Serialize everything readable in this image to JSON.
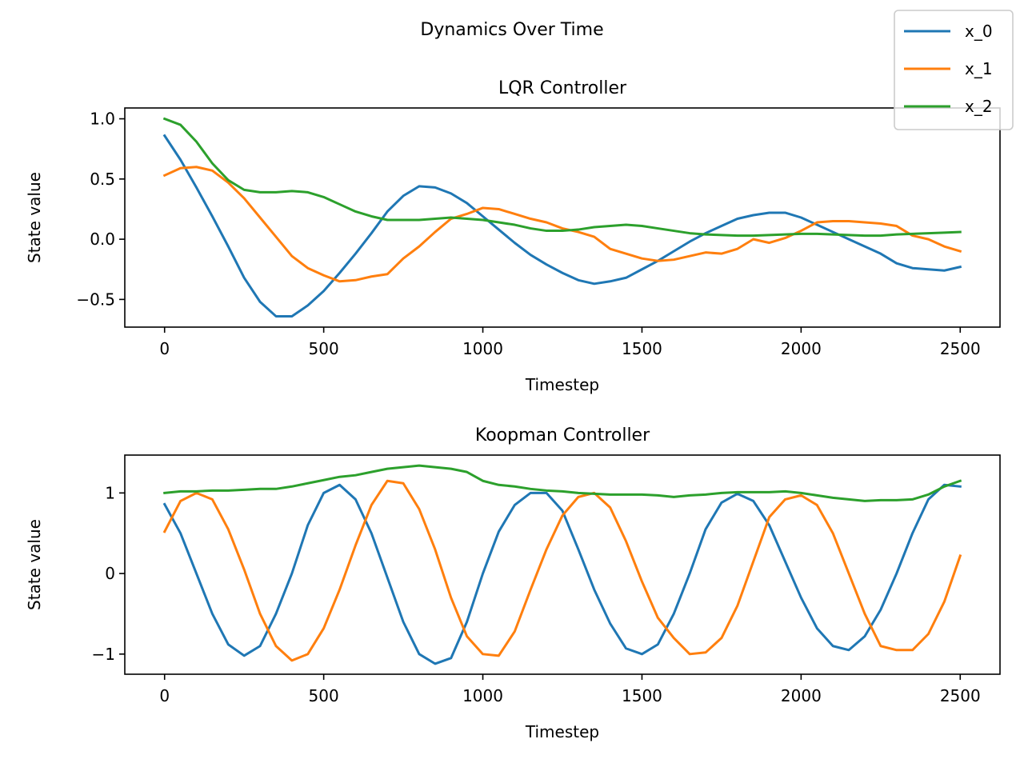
{
  "figure": {
    "suptitle": "Dynamics Over Time",
    "legend": {
      "placement": "top-right",
      "entries": [
        {
          "name": "x_0",
          "color": "#1f77b4"
        },
        {
          "name": "x_1",
          "color": "#ff7f0e"
        },
        {
          "name": "x_2",
          "color": "#2ca02c"
        }
      ]
    }
  },
  "chart_data": [
    {
      "type": "line",
      "title": "LQR Controller",
      "xlabel": "Timestep",
      "ylabel": "State value",
      "xlim": [
        -125,
        2625
      ],
      "ylim": [
        -0.73,
        1.09
      ],
      "xticks": [
        0,
        500,
        1000,
        1500,
        2000,
        2500
      ],
      "xtick_labels": [
        "0",
        "500",
        "1000",
        "1500",
        "2000",
        "2500"
      ],
      "yticks": [
        -0.5,
        0.0,
        0.5,
        1.0
      ],
      "ytick_labels": [
        "−0.5",
        "0.0",
        "0.5",
        "1.0"
      ],
      "grid": false,
      "series": [
        {
          "name": "x_0",
          "color": "#1f77b4",
          "x": [
            0,
            50,
            100,
            150,
            200,
            250,
            300,
            350,
            400,
            450,
            500,
            550,
            600,
            650,
            700,
            750,
            800,
            850,
            900,
            950,
            1000,
            1050,
            1100,
            1150,
            1200,
            1250,
            1300,
            1350,
            1400,
            1450,
            1500,
            1550,
            1600,
            1650,
            1700,
            1750,
            1800,
            1850,
            1900,
            1950,
            2000,
            2050,
            2100,
            2150,
            2200,
            2250,
            2300,
            2350,
            2400,
            2450,
            2500
          ],
          "values": [
            0.86,
            0.66,
            0.43,
            0.19,
            -0.06,
            -0.32,
            -0.52,
            -0.64,
            -0.64,
            -0.55,
            -0.43,
            -0.28,
            -0.12,
            0.05,
            0.23,
            0.36,
            0.44,
            0.43,
            0.38,
            0.3,
            0.19,
            0.08,
            -0.03,
            -0.13,
            -0.21,
            -0.28,
            -0.34,
            -0.37,
            -0.35,
            -0.32,
            -0.25,
            -0.18,
            -0.1,
            -0.02,
            0.05,
            0.11,
            0.17,
            0.2,
            0.22,
            0.22,
            0.18,
            0.12,
            0.06,
            0.0,
            -0.06,
            -0.12,
            -0.2,
            -0.24,
            -0.25,
            -0.26,
            -0.23
          ]
        },
        {
          "name": "x_1",
          "color": "#ff7f0e",
          "x": [
            0,
            50,
            100,
            150,
            200,
            250,
            300,
            350,
            400,
            450,
            500,
            550,
            600,
            650,
            700,
            750,
            800,
            850,
            900,
            950,
            1000,
            1050,
            1100,
            1150,
            1200,
            1250,
            1300,
            1350,
            1400,
            1450,
            1500,
            1550,
            1600,
            1650,
            1700,
            1750,
            1800,
            1850,
            1900,
            1950,
            2000,
            2050,
            2100,
            2150,
            2200,
            2250,
            2300,
            2350,
            2400,
            2450,
            2500
          ],
          "values": [
            0.53,
            0.59,
            0.6,
            0.57,
            0.47,
            0.34,
            0.18,
            0.02,
            -0.14,
            -0.24,
            -0.3,
            -0.35,
            -0.34,
            -0.31,
            -0.29,
            -0.16,
            -0.06,
            0.06,
            0.17,
            0.21,
            0.26,
            0.25,
            0.21,
            0.17,
            0.14,
            0.09,
            0.06,
            0.02,
            -0.08,
            -0.12,
            -0.16,
            -0.18,
            -0.17,
            -0.14,
            -0.11,
            -0.12,
            -0.08,
            0.0,
            -0.03,
            0.01,
            0.07,
            0.14,
            0.15,
            0.15,
            0.14,
            0.13,
            0.11,
            0.03,
            0.0,
            -0.06,
            -0.1
          ]
        },
        {
          "name": "x_2",
          "color": "#2ca02c",
          "x": [
            0,
            50,
            100,
            150,
            200,
            250,
            300,
            350,
            400,
            450,
            500,
            550,
            600,
            650,
            700,
            750,
            800,
            850,
            900,
            950,
            1000,
            1050,
            1100,
            1150,
            1200,
            1250,
            1300,
            1350,
            1400,
            1450,
            1500,
            1550,
            1600,
            1650,
            1700,
            1750,
            1800,
            1850,
            1900,
            1950,
            2000,
            2050,
            2100,
            2150,
            2200,
            2250,
            2300,
            2350,
            2400,
            2450,
            2500
          ],
          "values": [
            1.0,
            0.95,
            0.81,
            0.63,
            0.49,
            0.41,
            0.39,
            0.39,
            0.4,
            0.39,
            0.35,
            0.29,
            0.23,
            0.19,
            0.16,
            0.16,
            0.16,
            0.17,
            0.18,
            0.17,
            0.16,
            0.14,
            0.12,
            0.09,
            0.07,
            0.07,
            0.08,
            0.1,
            0.11,
            0.12,
            0.11,
            0.09,
            0.07,
            0.05,
            0.04,
            0.035,
            0.03,
            0.03,
            0.035,
            0.04,
            0.045,
            0.045,
            0.04,
            0.035,
            0.03,
            0.03,
            0.04,
            0.045,
            0.05,
            0.055,
            0.06
          ]
        }
      ]
    },
    {
      "type": "line",
      "title": "Koopman Controller",
      "xlabel": "Timestep",
      "ylabel": "State value",
      "xlim": [
        -125,
        2625
      ],
      "ylim": [
        -1.25,
        1.47
      ],
      "xticks": [
        0,
        500,
        1000,
        1500,
        2000,
        2500
      ],
      "xtick_labels": [
        "0",
        "500",
        "1000",
        "1500",
        "2000",
        "2500"
      ],
      "yticks": [
        -1,
        0,
        1
      ],
      "ytick_labels": [
        "−1",
        "0",
        "1"
      ],
      "grid": false,
      "series": [
        {
          "name": "x_0",
          "color": "#1f77b4",
          "x": [
            0,
            50,
            100,
            150,
            200,
            250,
            300,
            350,
            400,
            450,
            500,
            550,
            600,
            650,
            700,
            750,
            800,
            850,
            900,
            950,
            1000,
            1050,
            1100,
            1150,
            1200,
            1250,
            1300,
            1350,
            1400,
            1450,
            1500,
            1550,
            1600,
            1650,
            1700,
            1750,
            1800,
            1850,
            1900,
            1950,
            2000,
            2050,
            2100,
            2150,
            2200,
            2250,
            2300,
            2350,
            2400,
            2450,
            2500
          ],
          "values": [
            0.86,
            0.5,
            0.0,
            -0.5,
            -0.88,
            -1.02,
            -0.9,
            -0.5,
            0.0,
            0.6,
            1.0,
            1.1,
            0.92,
            0.5,
            -0.05,
            -0.6,
            -1.0,
            -1.12,
            -1.05,
            -0.6,
            0.0,
            0.52,
            0.85,
            1.0,
            1.0,
            0.78,
            0.3,
            -0.2,
            -0.62,
            -0.93,
            -1.0,
            -0.88,
            -0.5,
            0.0,
            0.55,
            0.88,
            0.99,
            0.9,
            0.6,
            0.15,
            -0.3,
            -0.68,
            -0.9,
            -0.95,
            -0.78,
            -0.45,
            0.0,
            0.5,
            0.92,
            1.1,
            1.08
          ]
        },
        {
          "name": "x_1",
          "color": "#ff7f0e",
          "x": [
            0,
            50,
            100,
            150,
            200,
            250,
            300,
            350,
            400,
            450,
            500,
            550,
            600,
            650,
            700,
            750,
            800,
            850,
            900,
            950,
            1000,
            1050,
            1100,
            1150,
            1200,
            1250,
            1300,
            1350,
            1400,
            1450,
            1500,
            1550,
            1600,
            1650,
            1700,
            1750,
            1800,
            1850,
            1900,
            1950,
            2000,
            2050,
            2100,
            2150,
            2200,
            2250,
            2300,
            2350,
            2400,
            2450,
            2500
          ],
          "values": [
            0.52,
            0.9,
            1.0,
            0.92,
            0.55,
            0.05,
            -0.5,
            -0.9,
            -1.08,
            -1.0,
            -0.68,
            -0.2,
            0.35,
            0.85,
            1.15,
            1.12,
            0.8,
            0.3,
            -0.3,
            -0.78,
            -1.0,
            -1.02,
            -0.72,
            -0.2,
            0.3,
            0.72,
            0.95,
            1.0,
            0.82,
            0.4,
            -0.1,
            -0.55,
            -0.8,
            -1.0,
            -0.98,
            -0.8,
            -0.4,
            0.15,
            0.7,
            0.92,
            0.97,
            0.85,
            0.5,
            0.0,
            -0.5,
            -0.9,
            -0.95,
            -0.95,
            -0.75,
            -0.35,
            0.22
          ]
        },
        {
          "name": "x_2",
          "color": "#2ca02c",
          "x": [
            0,
            50,
            100,
            150,
            200,
            250,
            300,
            350,
            400,
            450,
            500,
            550,
            600,
            650,
            700,
            750,
            800,
            850,
            900,
            950,
            1000,
            1050,
            1100,
            1150,
            1200,
            1250,
            1300,
            1350,
            1400,
            1450,
            1500,
            1550,
            1600,
            1650,
            1700,
            1750,
            1800,
            1850,
            1900,
            1950,
            2000,
            2050,
            2100,
            2150,
            2200,
            2250,
            2300,
            2350,
            2400,
            2450,
            2500
          ],
          "values": [
            1.0,
            1.02,
            1.02,
            1.03,
            1.03,
            1.04,
            1.05,
            1.05,
            1.08,
            1.12,
            1.16,
            1.2,
            1.22,
            1.26,
            1.3,
            1.32,
            1.34,
            1.32,
            1.3,
            1.26,
            1.15,
            1.1,
            1.08,
            1.05,
            1.03,
            1.02,
            1.0,
            0.99,
            0.98,
            0.98,
            0.98,
            0.97,
            0.95,
            0.97,
            0.98,
            1.0,
            1.01,
            1.01,
            1.01,
            1.02,
            1.0,
            0.97,
            0.94,
            0.92,
            0.9,
            0.91,
            0.91,
            0.92,
            0.98,
            1.08,
            1.15
          ]
        }
      ]
    }
  ]
}
